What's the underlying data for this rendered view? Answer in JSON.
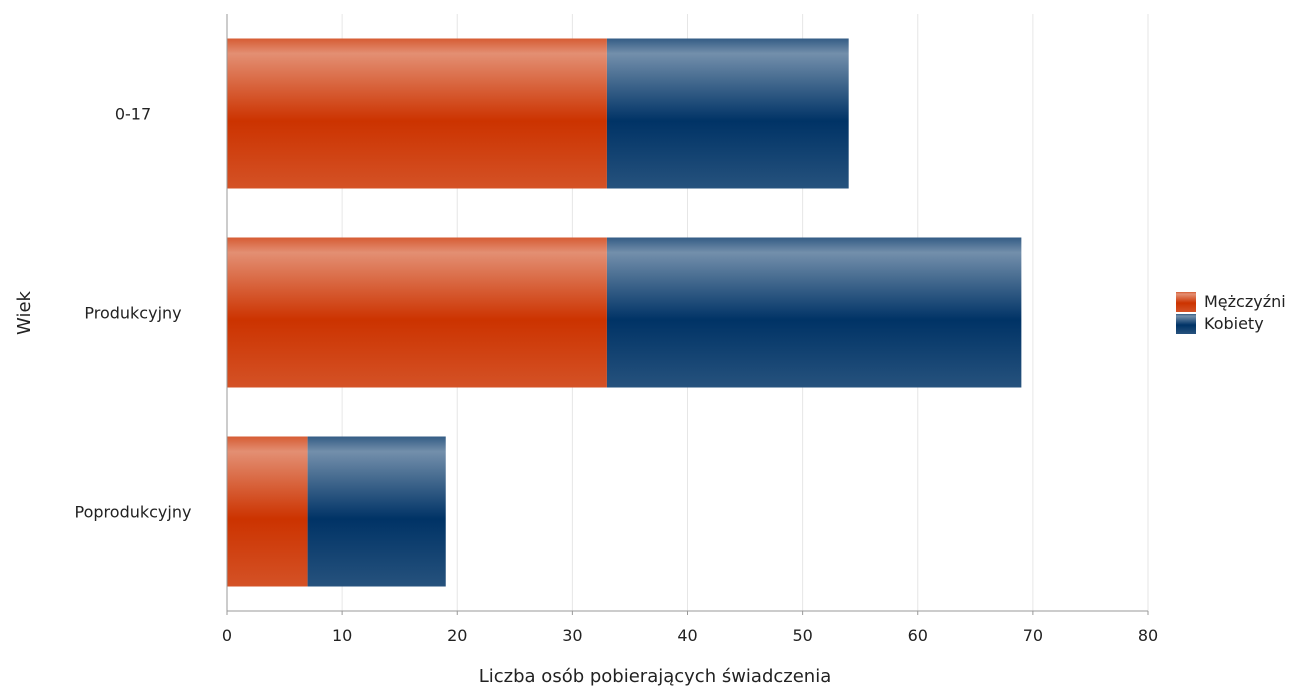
{
  "chart_data": {
    "type": "bar",
    "orientation": "horizontal",
    "stacked": true,
    "categories": [
      "0-17",
      "Produkcyjny",
      "Poprodukcyjny"
    ],
    "series": [
      {
        "name": "Mężczyźni",
        "values": [
          33,
          33,
          7
        ],
        "color": "#cc3300"
      },
      {
        "name": "Kobiety",
        "values": [
          21,
          36,
          12
        ],
        "color": "#003366"
      }
    ],
    "xlabel": "Liczba osób pobierających świadczenia",
    "ylabel": "Wiek",
    "xlim": [
      0,
      80
    ],
    "xticks": [
      0,
      10,
      20,
      30,
      40,
      50,
      60,
      70,
      80
    ],
    "grid": true,
    "legend_position": "right"
  }
}
